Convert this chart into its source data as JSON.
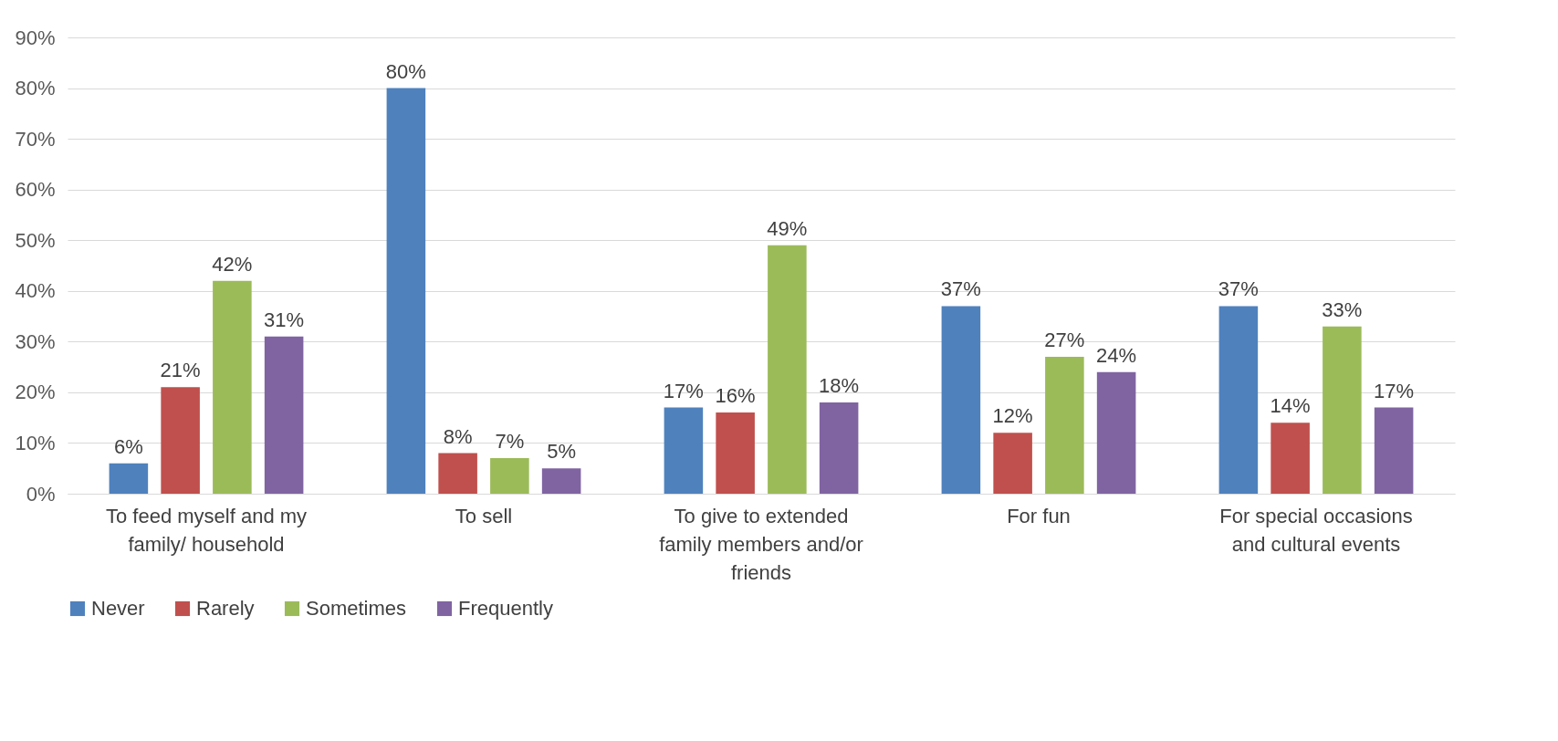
{
  "chart_data": {
    "type": "bar",
    "categories": [
      "To feed myself and my family/ household",
      "To sell",
      "To give to extended family members and/or friends",
      "For fun",
      "For special occasions and cultural events"
    ],
    "series": [
      {
        "name": "Never",
        "color": "#4f81bd",
        "values": [
          6,
          80,
          17,
          37,
          37
        ],
        "value_labels": [
          "6%",
          "80%",
          "17%",
          "37%",
          "37%"
        ]
      },
      {
        "name": "Rarely",
        "color": "#c0504d",
        "values": [
          21,
          8,
          16,
          12,
          14
        ],
        "value_labels": [
          "21%",
          "8%",
          "16%",
          "12%",
          "14%"
        ]
      },
      {
        "name": "Sometimes",
        "color": "#9bbb59",
        "values": [
          42,
          7,
          49,
          27,
          33
        ],
        "value_labels": [
          "42%",
          "7%",
          "49%",
          "27%",
          "33%"
        ]
      },
      {
        "name": "Frequently",
        "color": "#8064a2",
        "values": [
          31,
          5,
          18,
          24,
          17
        ],
        "value_labels": [
          "31%",
          "5%",
          "18%",
          "24%",
          "17%"
        ]
      }
    ],
    "ylim": [
      0,
      90
    ],
    "yticks": [
      {
        "value": 0,
        "label": "0%"
      },
      {
        "value": 10,
        "label": "10%"
      },
      {
        "value": 20,
        "label": "20%"
      },
      {
        "value": 30,
        "label": "30%"
      },
      {
        "value": 40,
        "label": "40%"
      },
      {
        "value": 50,
        "label": "50%"
      },
      {
        "value": 60,
        "label": "60%"
      },
      {
        "value": 70,
        "label": "70%"
      },
      {
        "value": 80,
        "label": "80%"
      },
      {
        "value": 90,
        "label": "90%"
      }
    ],
    "grid": "y",
    "legend": "bottom"
  }
}
